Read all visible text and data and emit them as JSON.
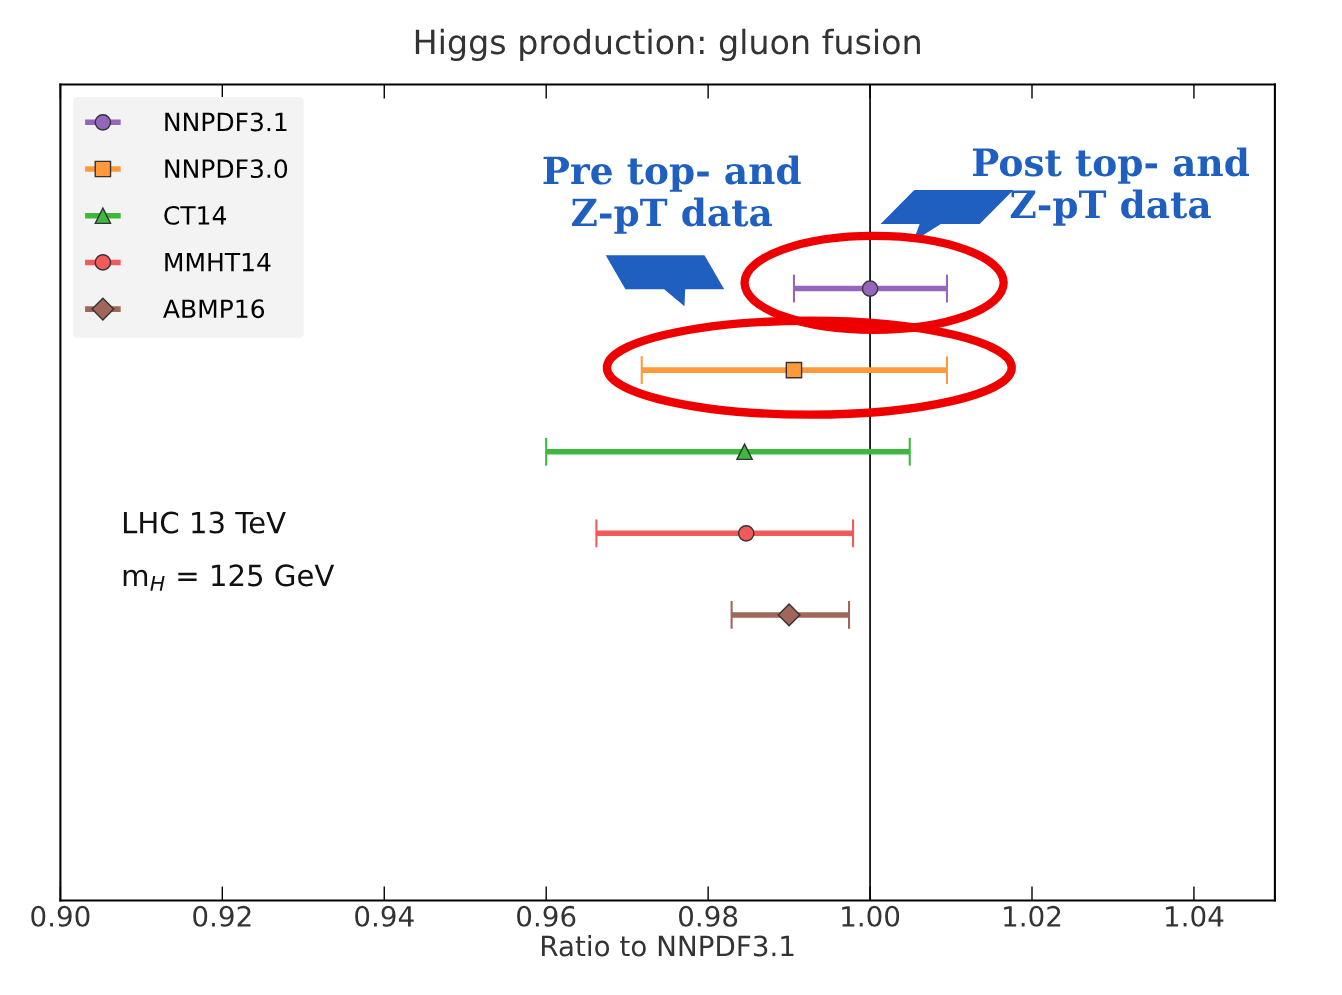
{
  "chart_data": {
    "type": "scatter",
    "orientation": "horizontal",
    "title": "Higgs production: gluon fusion",
    "xlabel": "Ratio to NNPDF3.1",
    "categories": [
      null,
      null,
      null,
      null,
      null,
      null,
      null,
      null,
      null,
      null
    ],
    "series": [
      {
        "name": "NNPDF3.1",
        "color": "#9467bd",
        "marker": "circle",
        "values": [
          null,
          null,
          1.0,
          null,
          null,
          null,
          null,
          null,
          null,
          null
        ],
        "errors": [
          null,
          null,
          [
            0.9906,
            1.0095
          ],
          null,
          null,
          null,
          null,
          null,
          null,
          null
        ]
      },
      {
        "name": "NNPDF3.0",
        "color": "#ff9a3c",
        "marker": "square",
        "values": [
          null,
          null,
          null,
          0.9906,
          null,
          null,
          null,
          null,
          null,
          null
        ],
        "errors": [
          null,
          null,
          null,
          [
            0.9718,
            1.0095
          ],
          null,
          null,
          null,
          null,
          null,
          null
        ]
      },
      {
        "name": "CT14",
        "color": "#3cb93c",
        "marker": "triangle",
        "values": [
          null,
          null,
          null,
          null,
          0.9845,
          null,
          null,
          null,
          null,
          null
        ],
        "errors": [
          null,
          null,
          null,
          null,
          [
            0.96,
            1.0049
          ],
          null,
          null,
          null,
          null,
          null
        ]
      },
      {
        "name": "MMHT14",
        "color": "#f05a5a",
        "marker": "circle",
        "values": [
          null,
          null,
          null,
          null,
          null,
          0.9847,
          null,
          null,
          null,
          null
        ],
        "errors": [
          null,
          null,
          null,
          null,
          null,
          [
            0.9662,
            0.9979
          ],
          null,
          null,
          null,
          null
        ]
      },
      {
        "name": "ABMP16",
        "color": "#a0665a",
        "marker": "diamond",
        "values": [
          null,
          null,
          null,
          null,
          null,
          null,
          0.99,
          null,
          null,
          null
        ],
        "errors": [
          null,
          null,
          null,
          null,
          null,
          null,
          [
            0.9829,
            0.9974
          ],
          null,
          null,
          null
        ]
      }
    ],
    "xlim": [
      0.9,
      1.05
    ],
    "xticks": [
      {
        "value": 0.9,
        "label": "0.90"
      },
      {
        "value": 0.92,
        "label": "0.92"
      },
      {
        "value": 0.94,
        "label": "0.94"
      },
      {
        "value": 0.96,
        "label": "0.96"
      },
      {
        "value": 0.98,
        "label": "0.98"
      },
      {
        "value": 1.0,
        "label": "1.00"
      },
      {
        "value": 1.02,
        "label": "1.02"
      },
      {
        "value": 1.04,
        "label": "1.04"
      }
    ],
    "tick_labels": "x",
    "grid": false,
    "legend": "top left",
    "ref_lines": [
      {
        "axis": "x",
        "value": 1.0,
        "color": "#000000"
      }
    ],
    "annotations": [
      "LHC 13 TeV",
      "m$_{H}$ = 125 GeV",
      "Pre top- and\nZ-pT data",
      "Post top- and\nZ-pT data"
    ]
  }
}
